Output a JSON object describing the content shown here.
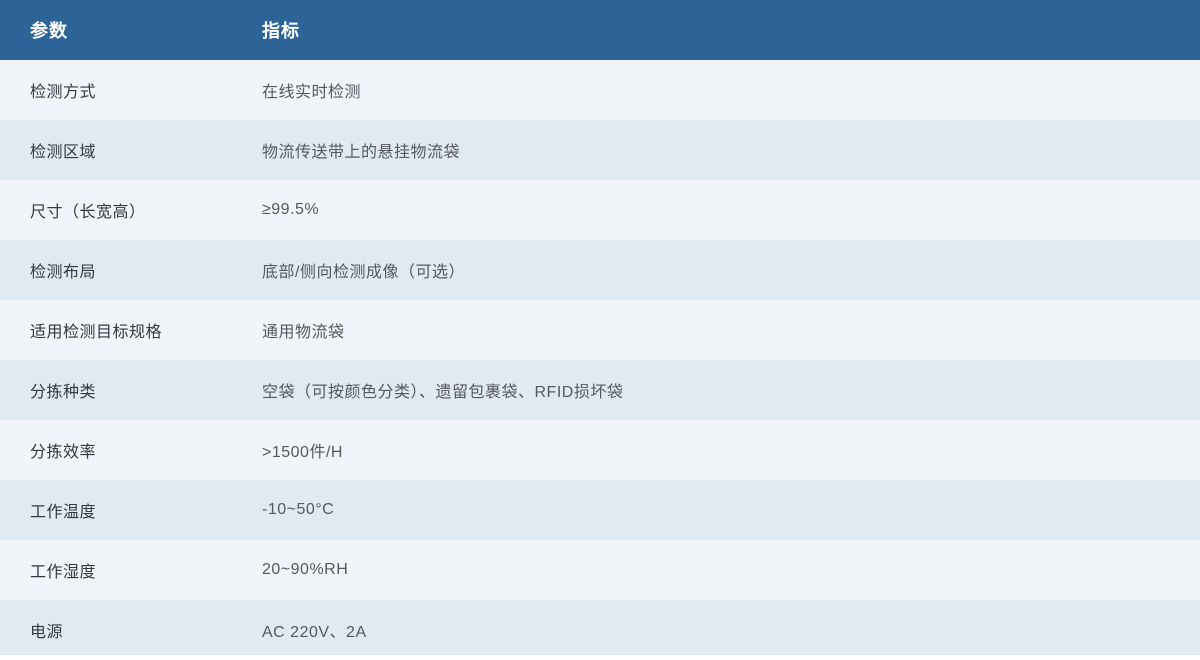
{
  "colors": {
    "header_bg": "#2d6498",
    "row_light_bg": "#f1f4f8",
    "row_blue_bg": "#e0eaf3",
    "header_text": "#ffffff",
    "param_text": "#34383f",
    "spec_text": "#55585e"
  },
  "table": {
    "header": {
      "param": "参数",
      "spec": "指标"
    },
    "rows": [
      {
        "param": "检测方式",
        "spec": "在线实时检测"
      },
      {
        "param": "检测区域",
        "spec": "物流传送带上的悬挂物流袋"
      },
      {
        "param": "尺寸（长宽高）",
        "spec": "≥99.5%"
      },
      {
        "param": "检测布局",
        "spec": "底部/侧向检测成像（可选）"
      },
      {
        "param": "适用检测目标规格",
        "spec": "通用物流袋"
      },
      {
        "param": "分拣种类",
        "spec": "空袋（可按颜色分类）、遗留包裹袋、RFID损坏袋"
      },
      {
        "param": "分拣效率",
        "spec": ">1500件/H"
      },
      {
        "param": "工作温度",
        "spec": "-10~50°C"
      },
      {
        "param": "工作湿度",
        "spec": "20~90%RH"
      },
      {
        "param": "电源",
        "spec": "AC 220V、2A"
      }
    ]
  }
}
